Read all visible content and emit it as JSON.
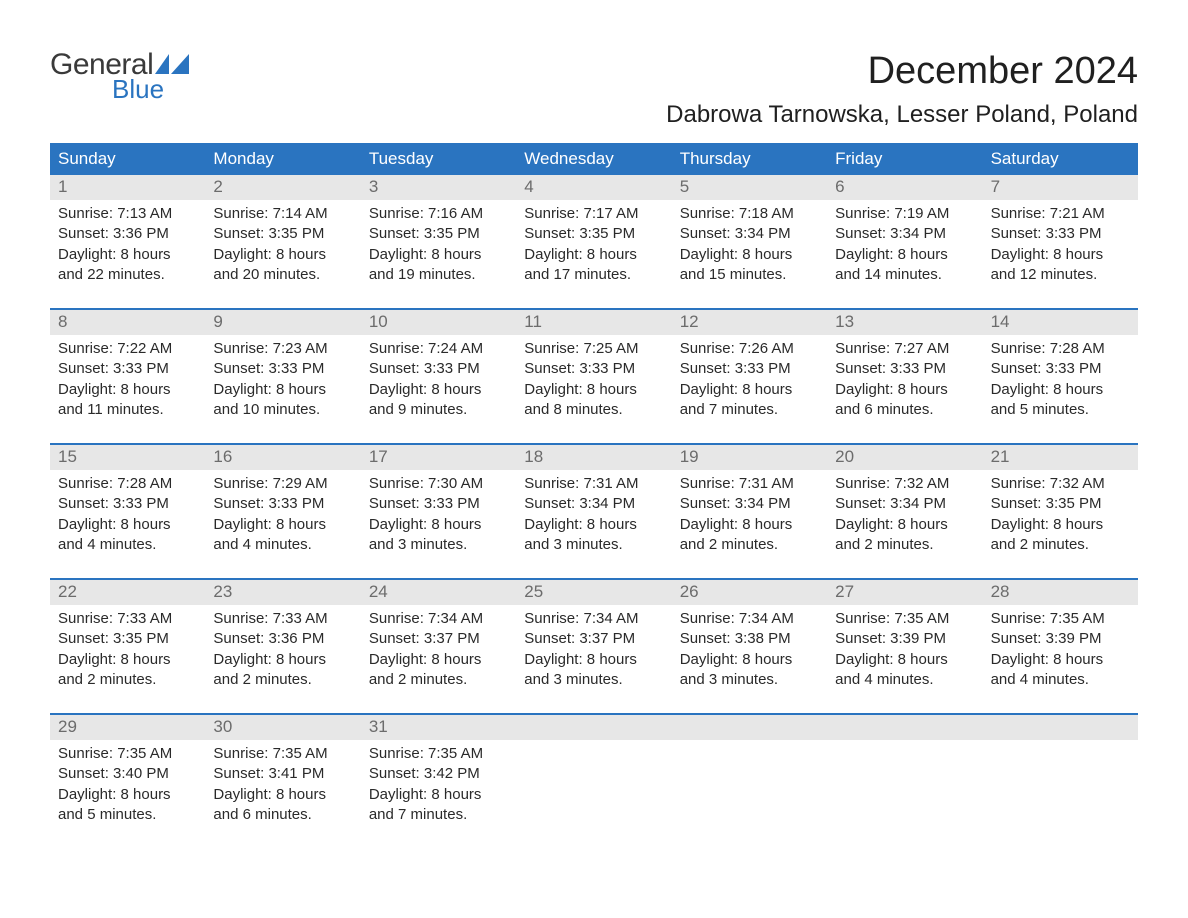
{
  "logo": {
    "word1": "General",
    "word2": "Blue",
    "text_color": "#3a3a3a",
    "accent_color": "#2a74c0"
  },
  "title": "December 2024",
  "location": "Dabrowa Tarnowska, Lesser Poland, Poland",
  "colors": {
    "header_bg": "#2a74c0",
    "header_text": "#ffffff",
    "daynum_bg": "#e7e7e7",
    "daynum_text": "#6c6c6c",
    "week_border": "#2a74c0",
    "body_text": "#2a2a2a",
    "page_bg": "#ffffff"
  },
  "day_names": [
    "Sunday",
    "Monday",
    "Tuesday",
    "Wednesday",
    "Thursday",
    "Friday",
    "Saturday"
  ],
  "labels": {
    "sunrise": "Sunrise:",
    "sunset": "Sunset:",
    "daylight": "Daylight:"
  },
  "weeks": [
    [
      {
        "n": "1",
        "sunrise": "7:13 AM",
        "sunset": "3:36 PM",
        "day": "8 hours and 22 minutes."
      },
      {
        "n": "2",
        "sunrise": "7:14 AM",
        "sunset": "3:35 PM",
        "day": "8 hours and 20 minutes."
      },
      {
        "n": "3",
        "sunrise": "7:16 AM",
        "sunset": "3:35 PM",
        "day": "8 hours and 19 minutes."
      },
      {
        "n": "4",
        "sunrise": "7:17 AM",
        "sunset": "3:35 PM",
        "day": "8 hours and 17 minutes."
      },
      {
        "n": "5",
        "sunrise": "7:18 AM",
        "sunset": "3:34 PM",
        "day": "8 hours and 15 minutes."
      },
      {
        "n": "6",
        "sunrise": "7:19 AM",
        "sunset": "3:34 PM",
        "day": "8 hours and 14 minutes."
      },
      {
        "n": "7",
        "sunrise": "7:21 AM",
        "sunset": "3:33 PM",
        "day": "8 hours and 12 minutes."
      }
    ],
    [
      {
        "n": "8",
        "sunrise": "7:22 AM",
        "sunset": "3:33 PM",
        "day": "8 hours and 11 minutes."
      },
      {
        "n": "9",
        "sunrise": "7:23 AM",
        "sunset": "3:33 PM",
        "day": "8 hours and 10 minutes."
      },
      {
        "n": "10",
        "sunrise": "7:24 AM",
        "sunset": "3:33 PM",
        "day": "8 hours and 9 minutes."
      },
      {
        "n": "11",
        "sunrise": "7:25 AM",
        "sunset": "3:33 PM",
        "day": "8 hours and 8 minutes."
      },
      {
        "n": "12",
        "sunrise": "7:26 AM",
        "sunset": "3:33 PM",
        "day": "8 hours and 7 minutes."
      },
      {
        "n": "13",
        "sunrise": "7:27 AM",
        "sunset": "3:33 PM",
        "day": "8 hours and 6 minutes."
      },
      {
        "n": "14",
        "sunrise": "7:28 AM",
        "sunset": "3:33 PM",
        "day": "8 hours and 5 minutes."
      }
    ],
    [
      {
        "n": "15",
        "sunrise": "7:28 AM",
        "sunset": "3:33 PM",
        "day": "8 hours and 4 minutes."
      },
      {
        "n": "16",
        "sunrise": "7:29 AM",
        "sunset": "3:33 PM",
        "day": "8 hours and 4 minutes."
      },
      {
        "n": "17",
        "sunrise": "7:30 AM",
        "sunset": "3:33 PM",
        "day": "8 hours and 3 minutes."
      },
      {
        "n": "18",
        "sunrise": "7:31 AM",
        "sunset": "3:34 PM",
        "day": "8 hours and 3 minutes."
      },
      {
        "n": "19",
        "sunrise": "7:31 AM",
        "sunset": "3:34 PM",
        "day": "8 hours and 2 minutes."
      },
      {
        "n": "20",
        "sunrise": "7:32 AM",
        "sunset": "3:34 PM",
        "day": "8 hours and 2 minutes."
      },
      {
        "n": "21",
        "sunrise": "7:32 AM",
        "sunset": "3:35 PM",
        "day": "8 hours and 2 minutes."
      }
    ],
    [
      {
        "n": "22",
        "sunrise": "7:33 AM",
        "sunset": "3:35 PM",
        "day": "8 hours and 2 minutes."
      },
      {
        "n": "23",
        "sunrise": "7:33 AM",
        "sunset": "3:36 PM",
        "day": "8 hours and 2 minutes."
      },
      {
        "n": "24",
        "sunrise": "7:34 AM",
        "sunset": "3:37 PM",
        "day": "8 hours and 2 minutes."
      },
      {
        "n": "25",
        "sunrise": "7:34 AM",
        "sunset": "3:37 PM",
        "day": "8 hours and 3 minutes."
      },
      {
        "n": "26",
        "sunrise": "7:34 AM",
        "sunset": "3:38 PM",
        "day": "8 hours and 3 minutes."
      },
      {
        "n": "27",
        "sunrise": "7:35 AM",
        "sunset": "3:39 PM",
        "day": "8 hours and 4 minutes."
      },
      {
        "n": "28",
        "sunrise": "7:35 AM",
        "sunset": "3:39 PM",
        "day": "8 hours and 4 minutes."
      }
    ],
    [
      {
        "n": "29",
        "sunrise": "7:35 AM",
        "sunset": "3:40 PM",
        "day": "8 hours and 5 minutes."
      },
      {
        "n": "30",
        "sunrise": "7:35 AM",
        "sunset": "3:41 PM",
        "day": "8 hours and 6 minutes."
      },
      {
        "n": "31",
        "sunrise": "7:35 AM",
        "sunset": "3:42 PM",
        "day": "8 hours and 7 minutes."
      },
      null,
      null,
      null,
      null
    ]
  ]
}
